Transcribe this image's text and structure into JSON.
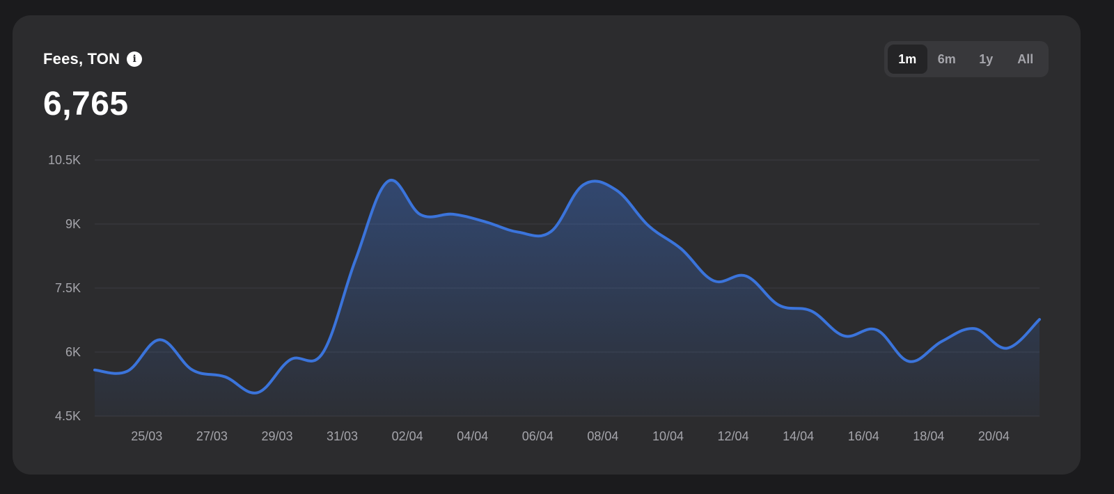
{
  "header": {
    "title": "Fees, TON",
    "info_icon": "info-icon",
    "value": "6,765"
  },
  "range_selector": {
    "options": [
      "1m",
      "6m",
      "1y",
      "All"
    ],
    "selected": "1m"
  },
  "colors": {
    "line": "#3b74db",
    "card_background": "#2c2c2e",
    "page_background": "#1b1b1d"
  },
  "chart_data": {
    "type": "area",
    "title": "Fees, TON",
    "ylim": [
      4500,
      10500
    ],
    "yticks": [
      10500,
      9000,
      7500,
      6000,
      4500
    ],
    "ytick_labels": [
      "10.5K",
      "9K",
      "7.5K",
      "6K",
      "4.5K"
    ],
    "xtick_labels": [
      "25/03",
      "27/03",
      "29/03",
      "31/03",
      "02/04",
      "04/04",
      "06/04",
      "08/04",
      "10/04",
      "12/04",
      "14/04",
      "16/04",
      "18/04",
      "20/04"
    ],
    "grid": true,
    "legend": "none",
    "series": [
      {
        "x": [
          "24/03",
          "25/03",
          "26/03",
          "27/03",
          "28/03",
          "29/03",
          "30/03",
          "31/03",
          "01/04",
          "02/04",
          "03/04",
          "04/04",
          "05/04",
          "06/04",
          "07/04",
          "08/04",
          "09/04",
          "10/04",
          "11/04",
          "12/04",
          "13/04",
          "14/04",
          "15/04",
          "16/04",
          "17/04",
          "18/04",
          "19/04",
          "20/04",
          "21/04",
          "22/04"
        ],
        "values": [
          5580,
          5550,
          6290,
          5580,
          5420,
          5050,
          5820,
          5980,
          8150,
          10000,
          9220,
          9230,
          9050,
          8810,
          8820,
          9920,
          9800,
          8960,
          8420,
          7670,
          7780,
          7100,
          6960,
          6380,
          6520,
          5780,
          6250,
          6550,
          6090,
          6765
        ]
      }
    ]
  }
}
